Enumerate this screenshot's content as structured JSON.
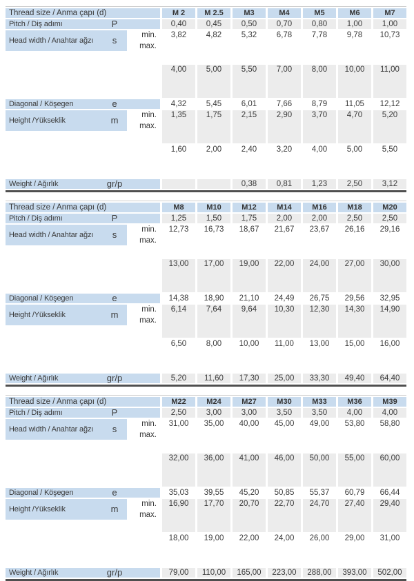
{
  "colors": {
    "header_blue": "#c8dbee",
    "row_gray": "#ececec",
    "row_white": "#ffffff",
    "rule_dark": "#4f4f4f",
    "rule_light": "#cccccc",
    "text": "#3a3a3a"
  },
  "tables": [
    {
      "header_label": "Thread size / Anma çapı (d)",
      "columns": [
        "M 2",
        "M 2.5",
        "M3",
        "M4",
        "M5",
        "M6",
        "M7"
      ],
      "rows": [
        {
          "label": "Pitch / Diş adımı",
          "symbol": "P",
          "values": [
            "0,40",
            "0,45",
            "0,50",
            "0,70",
            "0,80",
            "1,00",
            "1,00"
          ]
        },
        {
          "label": "Head width / Anahtar ağzı",
          "symbol": "s",
          "subrows": [
            {
              "sub": "min.",
              "values": [
                "3,82",
                "4,82",
                "5,32",
                "6,78",
                "7,78",
                "9,78",
                "10,73"
              ]
            },
            {
              "sub": "max.",
              "values": [
                "4,00",
                "5,00",
                "5,50",
                "7,00",
                "8,00",
                "10,00",
                "11,00"
              ]
            }
          ]
        },
        {
          "label": "Diagonal / Köşegen",
          "symbol": "e",
          "values": [
            "4,32",
            "5,45",
            "6,01",
            "7,66",
            "8,79",
            "11,05",
            "12,12"
          ]
        },
        {
          "label": "Height /Yükseklik",
          "symbol": "m",
          "subrows": [
            {
              "sub": "min.",
              "values": [
                "1,35",
                "1,75",
                "2,15",
                "2,90",
                "3,70",
                "4,70",
                "5,20"
              ]
            },
            {
              "sub": "max.",
              "values": [
                "1,60",
                "2,00",
                "2,40",
                "3,20",
                "4,00",
                "5,00",
                "5,50"
              ]
            }
          ]
        },
        {
          "label": "Weight / Ağırlık",
          "symbol": "gr/p",
          "values": [
            "",
            "",
            "0,38",
            "0,81",
            "1,23",
            "2,50",
            "3,12"
          ]
        }
      ]
    },
    {
      "header_label": "Thread size / Anma çapı (d)",
      "columns": [
        "M8",
        "M10",
        "M12",
        "M14",
        "M16",
        "M18",
        "M20"
      ],
      "rows": [
        {
          "label": "Pitch / Diş adımı",
          "symbol": "P",
          "values": [
            "1,25",
            "1,50",
            "1,75",
            "2,00",
            "2,00",
            "2,50",
            "2,50"
          ]
        },
        {
          "label": "Head width / Anahtar ağzı",
          "symbol": "s",
          "subrows": [
            {
              "sub": "min.",
              "values": [
                "12,73",
                "16,73",
                "18,67",
                "21,67",
                "23,67",
                "26,16",
                "29,16"
              ]
            },
            {
              "sub": "max.",
              "values": [
                "13,00",
                "17,00",
                "19,00",
                "22,00",
                "24,00",
                "27,00",
                "30,00"
              ]
            }
          ]
        },
        {
          "label": "Diagonal / Köşegen",
          "symbol": "e",
          "values": [
            "14,38",
            "18,90",
            "21,10",
            "24,49",
            "26,75",
            "29,56",
            "32,95"
          ]
        },
        {
          "label": "Height /Yükseklik",
          "symbol": "m",
          "subrows": [
            {
              "sub": "min.",
              "values": [
                "6,14",
                "7,64",
                "9,64",
                "10,30",
                "12,30",
                "14,30",
                "14,90"
              ]
            },
            {
              "sub": "max.",
              "values": [
                "6,50",
                "8,00",
                "10,00",
                "11,00",
                "13,00",
                "15,00",
                "16,00"
              ]
            }
          ]
        },
        {
          "label": "Weight / Ağırlık",
          "symbol": "gr/p",
          "values": [
            "5,20",
            "11,60",
            "17,30",
            "25,00",
            "33,30",
            "49,40",
            "64,40"
          ]
        }
      ]
    },
    {
      "header_label": "Thread size / Anma çapı (d)",
      "columns": [
        "M22",
        "M24",
        "M27",
        "M30",
        "M33",
        "M36",
        "M39"
      ],
      "rows": [
        {
          "label": "Pitch / Diş adımı",
          "symbol": "P",
          "values": [
            "2,50",
            "3,00",
            "3,00",
            "3,50",
            "3,50",
            "4,00",
            "4,00"
          ]
        },
        {
          "label": "Head width / Anahtar ağzı",
          "symbol": "s",
          "subrows": [
            {
              "sub": "min.",
              "values": [
                "31,00",
                "35,00",
                "40,00",
                "45,00",
                "49,00",
                "53,80",
                "58,80"
              ]
            },
            {
              "sub": "max.",
              "values": [
                "32,00",
                "36,00",
                "41,00",
                "46,00",
                "50,00",
                "55,00",
                "60,00"
              ]
            }
          ]
        },
        {
          "label": "Diagonal / Köşegen",
          "symbol": "e",
          "values": [
            "35,03",
            "39,55",
            "45,20",
            "50,85",
            "55,37",
            "60,79",
            "66,44"
          ]
        },
        {
          "label": "Height /Yükseklik",
          "symbol": "m",
          "subrows": [
            {
              "sub": "min.",
              "values": [
                "16,90",
                "17,70",
                "20,70",
                "22,70",
                "24,70",
                "27,40",
                "29,40"
              ]
            },
            {
              "sub": "max.",
              "values": [
                "18,00",
                "19,00",
                "22,00",
                "24,00",
                "26,00",
                "29,00",
                "31,00"
              ]
            }
          ]
        },
        {
          "label": "Weight / Ağırlık",
          "symbol": "gr/p",
          "values": [
            "79,00",
            "110,00",
            "165,00",
            "223,00",
            "288,00",
            "393,00",
            "502,00"
          ]
        }
      ]
    }
  ]
}
